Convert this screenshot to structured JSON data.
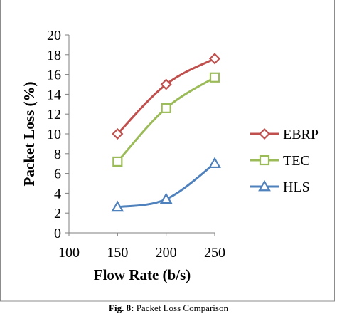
{
  "chart_data": {
    "type": "line",
    "title": "",
    "xlabel": "Flow Rate (b/s)",
    "ylabel": "Packet Loss (%)",
    "xlim": [
      100,
      250
    ],
    "ylim": [
      0,
      20
    ],
    "xticks": [
      100,
      150,
      200,
      250
    ],
    "yticks": [
      0,
      2,
      4,
      6,
      8,
      10,
      12,
      14,
      16,
      18,
      20
    ],
    "x": [
      150,
      200,
      250
    ],
    "grid": false,
    "legend_position": "right",
    "series": [
      {
        "name": "EBRP",
        "values": [
          10.0,
          15.0,
          17.6
        ],
        "color": "#c0504d",
        "marker": "diamond"
      },
      {
        "name": "TEC",
        "values": [
          7.2,
          12.6,
          15.7
        ],
        "color": "#9bbb59",
        "marker": "square"
      },
      {
        "name": "HLS",
        "values": [
          2.6,
          3.4,
          7.0
        ],
        "color": "#4f81bd",
        "marker": "triangle"
      }
    ]
  },
  "caption": {
    "label": "Fig. 8:",
    "text": "Packet Loss Comparison"
  }
}
